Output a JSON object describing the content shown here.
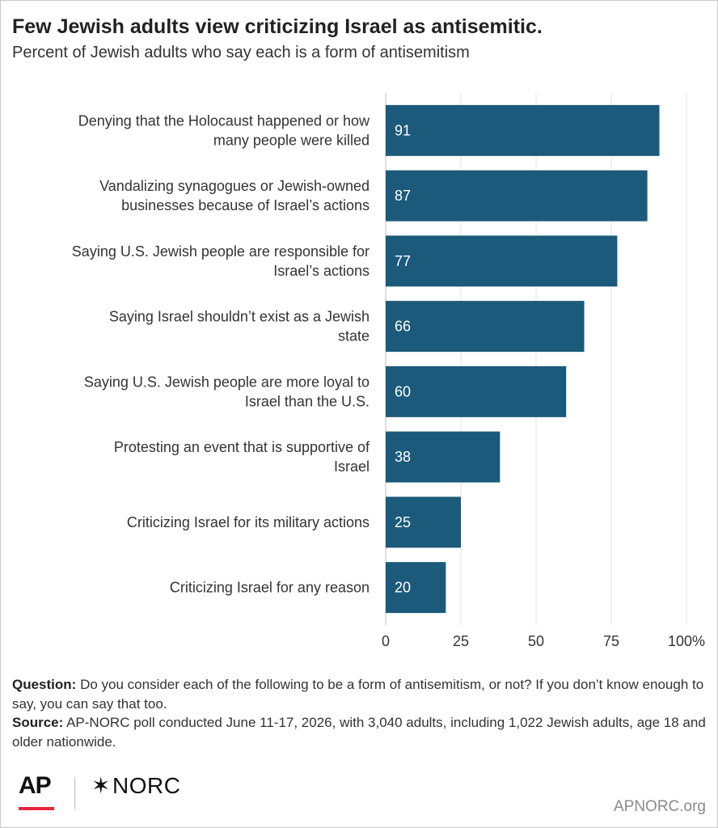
{
  "chart_data": {
    "type": "bar",
    "orientation": "horizontal",
    "title": "Few Jewish adults view criticizing Israel as antisemitic.",
    "subtitle": "Percent of Jewish adults who say each is a form of antisemitism",
    "categories": [
      [
        "Denying that the Holocaust happened or how",
        "many people were killed"
      ],
      [
        "Vandalizing synagogues or Jewish-owned",
        "businesses because of Israel’s actions"
      ],
      [
        "Saying U.S. Jewish people are responsible for",
        "Israel’s actions"
      ],
      [
        "Saying Israel shouldn’t exist as a Jewish",
        "state"
      ],
      [
        "Saying U.S. Jewish people are more loyal to",
        "Israel than the U.S."
      ],
      [
        "Protesting an event that is supportive of",
        "Israel"
      ],
      [
        "Criticizing Israel for its military actions"
      ],
      [
        "Criticizing Israel for any reason"
      ]
    ],
    "values": [
      91,
      87,
      77,
      66,
      60,
      38,
      25,
      20
    ],
    "xlim": [
      0,
      100
    ],
    "xticks": [
      "0",
      "25",
      "50",
      "75",
      "100%"
    ],
    "grid": true,
    "bar_color": "#1b5a7a",
    "value_label_color": "#ffffff"
  },
  "footnote": {
    "question_label": "Question:",
    "question_text": " Do you consider each of the following to be a form of antisemitism, or not? If you don’t know enough to say, you can say that too.",
    "source_label": "Source:",
    "source_text": " AP-NORC poll conducted June 11-17, 2026, with 3,040 adults, including 1,022 Jewish adults, age 18 and older nationwide."
  },
  "branding": {
    "ap_logo": "AP",
    "norc_logo": "NORC",
    "norc_icon": "asterisk-star-icon",
    "website": "APNORC.org",
    "accent_color": "#e8263b"
  }
}
